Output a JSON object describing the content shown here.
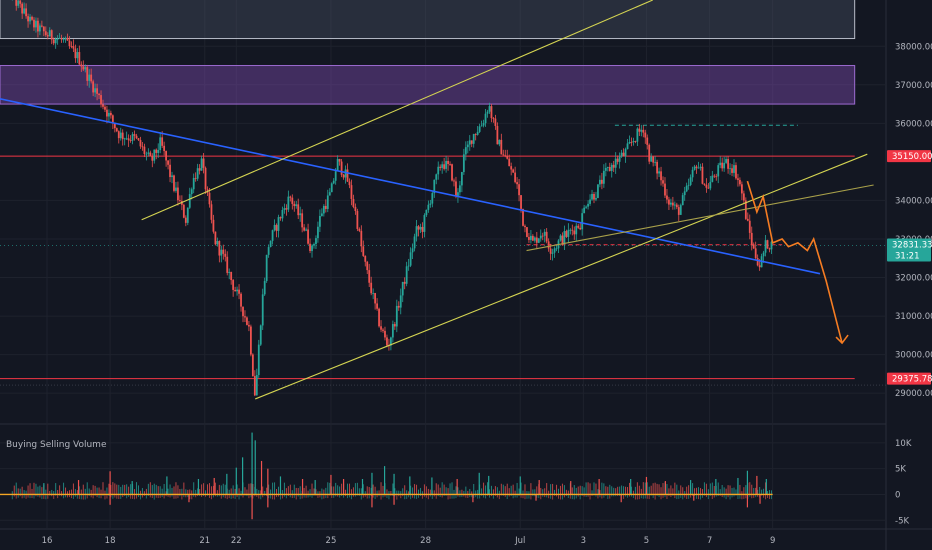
{
  "chart_data": {
    "type": "candlestick",
    "price_axis": {
      "ticks": [
        {
          "value": 38000,
          "label": "38000.00"
        },
        {
          "value": 37000,
          "label": "37000.00"
        },
        {
          "value": 36000,
          "label": "36000.00"
        },
        {
          "value": 34000,
          "label": "34000.00"
        },
        {
          "value": 33000,
          "label": "33000.00"
        },
        {
          "value": 32000,
          "label": "32000.00"
        },
        {
          "value": 31000,
          "label": "31000.00"
        },
        {
          "value": 30000,
          "label": "30000.00"
        },
        {
          "value": 29000,
          "label": "29000.00"
        }
      ],
      "range": [
        28200,
        39200
      ]
    },
    "price_labels": [
      {
        "value": 35150,
        "label": "35150.00",
        "color": "#f23645"
      },
      {
        "value": 29375.78,
        "label": "29375.78",
        "color": "#f23645"
      }
    ],
    "current_price": {
      "value": 32831.33,
      "label": "32831.33",
      "countdown": "31:21",
      "color": "#26a69a"
    },
    "time_axis": {
      "ticks": [
        {
          "label": "16",
          "day": 16
        },
        {
          "label": "18",
          "day": 18
        },
        {
          "label": "21",
          "day": 21
        },
        {
          "label": "22",
          "day": 22
        },
        {
          "label": "25",
          "day": 25
        },
        {
          "label": "28",
          "day": 28
        },
        {
          "label": "Jul",
          "day": 31
        },
        {
          "label": "3",
          "day": 33
        },
        {
          "label": "5",
          "day": 35
        },
        {
          "label": "7",
          "day": 37
        },
        {
          "label": "9",
          "day": 39
        }
      ]
    },
    "close_path": [
      [
        14.9,
        39300
      ],
      [
        15.5,
        38600
      ],
      [
        16.0,
        38300
      ],
      [
        16.5,
        38150
      ],
      [
        17.0,
        37700
      ],
      [
        17.5,
        36900
      ],
      [
        17.9,
        36300
      ],
      [
        18.3,
        35700
      ],
      [
        18.8,
        35600
      ],
      [
        19.3,
        35000
      ],
      [
        19.6,
        35500
      ],
      [
        20.0,
        34400
      ],
      [
        20.4,
        33500
      ],
      [
        20.6,
        34500
      ],
      [
        20.9,
        35000
      ],
      [
        21.3,
        33000
      ],
      [
        21.6,
        32500
      ],
      [
        21.9,
        31800
      ],
      [
        22.1,
        31400
      ],
      [
        22.4,
        30700
      ],
      [
        22.6,
        28900
      ],
      [
        22.8,
        31200
      ],
      [
        23.0,
        32800
      ],
      [
        23.4,
        33600
      ],
      [
        23.7,
        34100
      ],
      [
        24.1,
        33400
      ],
      [
        24.4,
        32700
      ],
      [
        24.7,
        33700
      ],
      [
        25.0,
        34200
      ],
      [
        25.2,
        35000
      ],
      [
        25.5,
        34600
      ],
      [
        25.8,
        33600
      ],
      [
        26.0,
        32600
      ],
      [
        26.3,
        31600
      ],
      [
        26.5,
        30900
      ],
      [
        26.8,
        30200
      ],
      [
        27.0,
        30800
      ],
      [
        27.2,
        31500
      ],
      [
        27.5,
        32500
      ],
      [
        27.7,
        33200
      ],
      [
        27.9,
        33300
      ],
      [
        28.2,
        34200
      ],
      [
        28.5,
        35000
      ],
      [
        28.8,
        34800
      ],
      [
        29.0,
        34000
      ],
      [
        29.2,
        35100
      ],
      [
        29.5,
        35700
      ],
      [
        29.8,
        36000
      ],
      [
        30.0,
        36500
      ],
      [
        30.3,
        35500
      ],
      [
        30.6,
        35000
      ],
      [
        30.9,
        34400
      ],
      [
        31.1,
        33400
      ],
      [
        31.4,
        32900
      ],
      [
        31.7,
        33200
      ],
      [
        32.0,
        32700
      ],
      [
        32.3,
        33000
      ],
      [
        32.6,
        33200
      ],
      [
        32.9,
        33400
      ],
      [
        33.1,
        34000
      ],
      [
        33.4,
        34200
      ],
      [
        33.7,
        34700
      ],
      [
        34.0,
        35000
      ],
      [
        34.3,
        35200
      ],
      [
        34.6,
        35600
      ],
      [
        34.9,
        35900
      ],
      [
        35.1,
        35100
      ],
      [
        35.4,
        34700
      ],
      [
        35.7,
        34000
      ],
      [
        36.0,
        33700
      ],
      [
        36.3,
        34300
      ],
      [
        36.6,
        35000
      ],
      [
        36.9,
        34300
      ],
      [
        37.2,
        34700
      ],
      [
        37.5,
        35000
      ],
      [
        37.8,
        34800
      ],
      [
        38.0,
        34300
      ],
      [
        38.2,
        33400
      ],
      [
        38.4,
        32700
      ],
      [
        38.6,
        32300
      ],
      [
        38.8,
        32900
      ],
      [
        39.0,
        32831
      ]
    ],
    "projection_path": [
      [
        38.2,
        34500
      ],
      [
        38.5,
        33700
      ],
      [
        38.7,
        34100
      ],
      [
        39.0,
        32900
      ],
      [
        39.3,
        33000
      ],
      [
        39.5,
        32800
      ],
      [
        39.8,
        32900
      ],
      [
        40.1,
        32700
      ],
      [
        40.3,
        33000
      ],
      [
        40.7,
        31900
      ],
      [
        41.2,
        30300
      ]
    ],
    "zones": [
      {
        "name": "resistance-zone-top",
        "from": 38200,
        "to": 39300,
        "day_end": 41.6
      },
      {
        "name": "resistance-zone-purple",
        "from": 36500,
        "to": 37500,
        "day_end": 41.6
      }
    ],
    "trendlines": [
      {
        "name": "blue-descending-trendline",
        "color": "#2962ff",
        "points": [
          [
            13.0,
            36900
          ],
          [
            40.5,
            32100
          ]
        ]
      },
      {
        "name": "upper-channel-line",
        "color": "#d4d452",
        "points": [
          [
            19.0,
            33500
          ],
          [
            35.2,
            39200
          ]
        ]
      },
      {
        "name": "lower-channel-line",
        "color": "#d4d452",
        "points": [
          [
            22.6,
            28850
          ],
          [
            42.0,
            35200
          ]
        ]
      },
      {
        "name": "minor-support-line",
        "color": "#a9a14a",
        "points": [
          [
            31.2,
            32700
          ],
          [
            42.2,
            34400
          ]
        ]
      }
    ],
    "horizontal_levels": [
      {
        "name": "red-level-35150",
        "value": 35150,
        "color": "#f23645",
        "style": "solid",
        "day_from": 13.0,
        "day_to": 41.6
      },
      {
        "name": "red-level-29375",
        "value": 29375.78,
        "color": "#f23645",
        "style": "solid",
        "day_from": 13.0,
        "day_to": 41.6
      },
      {
        "name": "red-dashed-level",
        "value": 32850,
        "color": "#f23645",
        "style": "dashed",
        "day_from": 31.2,
        "day_to": 39.3
      },
      {
        "name": "green-dashed-level",
        "value": 35950,
        "color": "#26a69a",
        "style": "dashed",
        "day_from": 34.0,
        "day_to": 39.8
      }
    ],
    "volume_panel": {
      "title": "Buying Selling Volume",
      "ticks": [
        {
          "value": 10000,
          "label": "10K"
        },
        {
          "value": 5000,
          "label": "5K"
        },
        {
          "value": 0,
          "label": "0"
        },
        {
          "value": -5000,
          "label": "-5K"
        }
      ],
      "range": [
        -6500,
        12500
      ],
      "spikes": [
        [
          15.9,
          2200
        ],
        [
          17.0,
          2800
        ],
        [
          18.0,
          4500
        ],
        [
          18.7,
          2600
        ],
        [
          19.8,
          3500
        ],
        [
          20.8,
          3000
        ],
        [
          21.3,
          3200
        ],
        [
          21.7,
          4000
        ],
        [
          22.0,
          5200
        ],
        [
          22.2,
          7200
        ],
        [
          22.5,
          12000
        ],
        [
          22.6,
          10500
        ],
        [
          22.8,
          6500
        ],
        [
          23.0,
          5000
        ],
        [
          23.4,
          3500
        ],
        [
          24.1,
          3000
        ],
        [
          24.5,
          2800
        ],
        [
          25.0,
          3800
        ],
        [
          25.4,
          3000
        ],
        [
          26.0,
          3000
        ],
        [
          26.3,
          4200
        ],
        [
          26.7,
          5500
        ],
        [
          27.0,
          4000
        ],
        [
          27.5,
          3500
        ],
        [
          28.2,
          3300
        ],
        [
          29.0,
          3000
        ],
        [
          29.7,
          4200
        ],
        [
          30.0,
          3600
        ],
        [
          31.0,
          3500
        ],
        [
          31.6,
          2800
        ],
        [
          32.6,
          2600
        ],
        [
          33.5,
          3000
        ],
        [
          34.5,
          3000
        ],
        [
          35.0,
          3400
        ],
        [
          35.6,
          2600
        ],
        [
          36.4,
          2800
        ],
        [
          37.2,
          3000
        ],
        [
          37.9,
          3200
        ],
        [
          38.2,
          4600
        ],
        [
          38.5,
          3600
        ],
        [
          38.8,
          3000
        ]
      ],
      "sell_spikes": [
        [
          18.0,
          -2000
        ],
        [
          20.5,
          -1500
        ],
        [
          22.5,
          -4800
        ],
        [
          23.0,
          -2500
        ],
        [
          26.3,
          -2500
        ],
        [
          27.0,
          -2000
        ],
        [
          29.5,
          -1500
        ],
        [
          31.5,
          -1200
        ],
        [
          34.2,
          -1500
        ],
        [
          36.5,
          -1200
        ],
        [
          38.2,
          -2500
        ],
        [
          38.6,
          -1800
        ]
      ]
    }
  }
}
